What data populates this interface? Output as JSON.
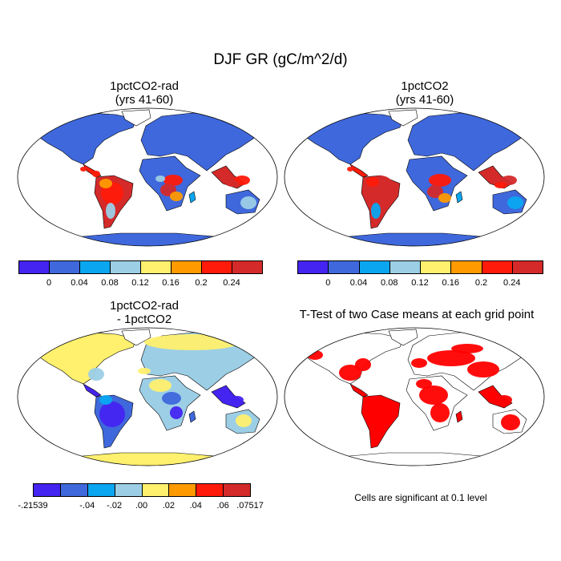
{
  "figure": {
    "title": "DJF GR (gC/m^2/d)"
  },
  "panels": [
    {
      "id": "p1",
      "title_line1": "1pctCO2-rad",
      "title_line2": "(yrs 41-60)"
    },
    {
      "id": "p2",
      "title_line1": "1pctCO2",
      "title_line2": "(yrs 41-60)"
    },
    {
      "id": "p3",
      "title_line1": "1pctCO2-rad",
      "title_line2": "- 1pctCO2"
    },
    {
      "id": "p4",
      "title_line1": "T-Test of two Case means at each grid point",
      "title_line2": ""
    }
  ],
  "colorbar_abs": {
    "colors": [
      "#4424f0",
      "#3f68dc",
      "#0aa6f0",
      "#9ccfe6",
      "#fff06e",
      "#ff9a00",
      "#ff1a0a",
      "#d42a2a"
    ],
    "labels": [
      "0",
      "0.04",
      "0.08",
      "0.12",
      "0.16",
      "0.2",
      "0.24"
    ]
  },
  "colorbar_diff": {
    "colors": [
      "#4424f0",
      "#3f68dc",
      "#0aa6f0",
      "#9ccfe6",
      "#fff06e",
      "#ff9a00",
      "#ff1a0a",
      "#d42a2a"
    ],
    "labels": [
      "-.21539",
      "-.04",
      "-.02",
      ".00",
      ".02",
      ".04",
      ".06",
      ".07517"
    ]
  },
  "ttest_note": "Cells are significant at 0.1 level",
  "map_colors": {
    "ocean": "#ffffff",
    "outline": "#000000",
    "significant": "#ff0000"
  }
}
